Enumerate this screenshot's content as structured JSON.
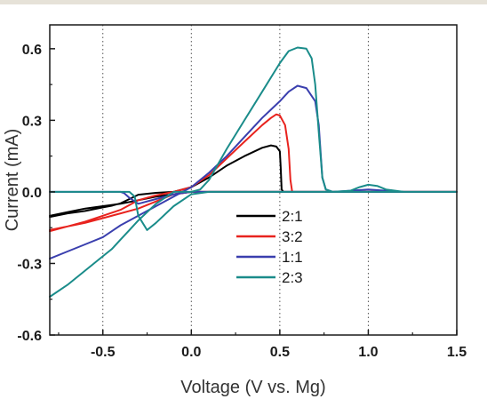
{
  "chart_data": {
    "type": "line",
    "title": "",
    "xlabel": "Voltage (V vs. Mg)",
    "ylabel": "Current (mA)",
    "xlim": [
      -0.8,
      1.5
    ],
    "ylim": [
      -0.6,
      0.7
    ],
    "x_ticks": [
      -0.5,
      0.0,
      0.5,
      1.0,
      1.5
    ],
    "x_tick_labels": [
      "-0.5",
      "0.0",
      "0.5",
      "1.0",
      "1.5"
    ],
    "y_ticks": [
      -0.6,
      -0.3,
      0.0,
      0.3,
      0.6
    ],
    "y_tick_labels": [
      "-0.6",
      "-0.3",
      "0.0",
      "0.3",
      "0.6"
    ],
    "grid": "vertical dotted lines at x ticks",
    "legend_position": "lower-center",
    "series": [
      {
        "name": "2:1",
        "color": "#000000",
        "x": [
          -0.8,
          -0.7,
          -0.6,
          -0.5,
          -0.45,
          -0.4,
          -0.35,
          -0.3,
          -0.2,
          -0.1,
          0.0,
          0.1,
          0.2,
          0.3,
          0.4,
          0.45,
          0.48,
          0.5,
          0.505,
          0.51,
          0.52,
          0.6,
          0.8,
          1.0,
          1.5,
          1.5,
          0.9,
          0.6,
          0.5,
          0.4,
          0.3,
          0.2,
          0.1,
          0.0,
          -0.1,
          -0.2,
          -0.3,
          -0.4,
          -0.5,
          -0.6,
          -0.7,
          -0.8
        ],
        "y": [
          -0.105,
          -0.09,
          -0.08,
          -0.065,
          -0.058,
          -0.048,
          -0.03,
          -0.012,
          -0.004,
          0.0,
          0.02,
          0.06,
          0.11,
          0.15,
          0.185,
          0.195,
          0.19,
          0.17,
          0.1,
          0.01,
          0.0,
          0.0,
          0.0,
          0.0,
          0.0,
          0.0,
          0.0,
          0.0,
          0.0,
          0.0,
          0.0,
          0.0,
          0.0,
          0.0,
          -0.01,
          -0.02,
          -0.035,
          -0.05,
          -0.06,
          -0.07,
          -0.085,
          -0.1
        ]
      },
      {
        "name": "3:2",
        "color": "#e8231e",
        "x": [
          -0.8,
          -0.7,
          -0.6,
          -0.5,
          -0.4,
          -0.35,
          -0.3,
          -0.2,
          -0.1,
          0.0,
          0.1,
          0.2,
          0.3,
          0.4,
          0.45,
          0.48,
          0.5,
          0.53,
          0.55,
          0.56,
          0.57,
          0.6,
          0.8,
          1.0,
          1.5,
          1.5,
          0.9,
          0.6,
          0.5,
          0.4,
          0.3,
          0.2,
          0.1,
          0.0,
          -0.1,
          -0.2,
          -0.3,
          -0.4,
          -0.5,
          -0.6,
          -0.7,
          -0.8
        ],
        "y": [
          -0.165,
          -0.145,
          -0.125,
          -0.1,
          -0.075,
          -0.055,
          -0.035,
          -0.015,
          0.0,
          0.02,
          0.07,
          0.14,
          0.21,
          0.28,
          0.31,
          0.325,
          0.32,
          0.28,
          0.18,
          0.05,
          0.0,
          0.0,
          0.0,
          0.0,
          0.0,
          0.0,
          0.0,
          0.0,
          0.0,
          0.0,
          0.0,
          0.0,
          0.0,
          0.0,
          -0.01,
          -0.04,
          -0.07,
          -0.09,
          -0.11,
          -0.13,
          -0.145,
          -0.16
        ]
      },
      {
        "name": "1:1",
        "color": "#3a3fae",
        "x": [
          -0.8,
          -0.7,
          -0.6,
          -0.5,
          -0.4,
          -0.3,
          -0.2,
          -0.1,
          0.0,
          0.1,
          0.2,
          0.3,
          0.4,
          0.5,
          0.55,
          0.6,
          0.65,
          0.7,
          0.72,
          0.74,
          0.76,
          0.8,
          0.9,
          1.0,
          1.1,
          1.2,
          1.5,
          1.5,
          0.9,
          0.6,
          0.5,
          0.4,
          0.3,
          0.2,
          0.1,
          0.0,
          -0.1,
          -0.2,
          -0.3,
          -0.35,
          -0.38,
          -0.4,
          -0.5,
          -0.8
        ],
        "y": [
          -0.28,
          -0.25,
          -0.22,
          -0.19,
          -0.14,
          -0.1,
          -0.06,
          -0.02,
          0.02,
          0.08,
          0.15,
          0.23,
          0.31,
          0.38,
          0.42,
          0.445,
          0.435,
          0.38,
          0.28,
          0.06,
          0.01,
          0.0,
          0.005,
          0.01,
          0.005,
          0.0,
          0.0,
          0.0,
          0.0,
          0.0,
          0.0,
          0.0,
          0.0,
          0.0,
          0.0,
          0.0,
          -0.01,
          -0.03,
          -0.05,
          -0.025,
          -0.005,
          0.0,
          0.0,
          0.0
        ]
      },
      {
        "name": "2:3",
        "color": "#1a8c8a",
        "x": [
          -0.8,
          -0.7,
          -0.6,
          -0.5,
          -0.45,
          -0.4,
          -0.35,
          -0.3,
          -0.2,
          -0.1,
          0.0,
          0.05,
          0.1,
          0.2,
          0.3,
          0.4,
          0.5,
          0.55,
          0.6,
          0.65,
          0.68,
          0.7,
          0.72,
          0.74,
          0.76,
          0.8,
          0.9,
          0.95,
          1.0,
          1.05,
          1.1,
          1.2,
          1.5,
          1.5,
          0.9,
          0.6,
          0.5,
          0.4,
          0.3,
          0.2,
          0.1,
          0.0,
          -0.1,
          -0.2,
          -0.25,
          -0.3,
          -0.32,
          -0.35,
          -0.4,
          -0.5,
          -0.8
        ],
        "y": [
          -0.44,
          -0.39,
          -0.33,
          -0.27,
          -0.24,
          -0.2,
          -0.16,
          -0.12,
          -0.05,
          0.0,
          0.0,
          0.01,
          0.05,
          0.18,
          0.3,
          0.42,
          0.54,
          0.59,
          0.605,
          0.6,
          0.56,
          0.45,
          0.25,
          0.06,
          0.01,
          0.0,
          0.005,
          0.02,
          0.03,
          0.025,
          0.01,
          0.0,
          0.0,
          0.0,
          0.0,
          0.0,
          0.0,
          0.0,
          0.0,
          0.0,
          0.0,
          -0.01,
          -0.06,
          -0.13,
          -0.16,
          -0.1,
          -0.02,
          0.0,
          0.0,
          0.0,
          0.0
        ]
      }
    ]
  }
}
